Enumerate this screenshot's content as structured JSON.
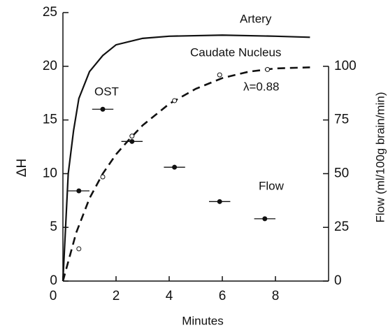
{
  "chart_data": {
    "type": "line",
    "xlabel": "Minutes",
    "ylabel": "ΔH",
    "y2label": "Flow (ml/100g brain/min)",
    "xlim": [
      0,
      10
    ],
    "xticks": [
      0,
      2,
      4,
      6,
      8
    ],
    "ylim": [
      0,
      25
    ],
    "yticks": [
      0,
      5,
      10,
      15,
      20,
      25
    ],
    "y2lim": [
      0,
      125
    ],
    "y2ticks": [
      0,
      25,
      50,
      75,
      100
    ],
    "annotations": [
      "λ=0.88"
    ],
    "series": [
      {
        "name": "Artery",
        "style": "solid",
        "color": "#111111",
        "x": [
          0,
          0.1,
          0.2,
          0.4,
          0.6,
          1,
          1.5,
          2,
          3,
          4,
          6,
          8,
          9.3
        ],
        "values": [
          0,
          5,
          10,
          14,
          17,
          19.5,
          21,
          22,
          22.6,
          22.8,
          22.9,
          22.8,
          22.7
        ]
      },
      {
        "name": "Caudate Nucleus",
        "style": "dashed",
        "color": "#111111",
        "x": [
          0,
          0.5,
          1,
          1.5,
          2,
          2.5,
          3,
          4,
          5,
          6,
          7,
          8,
          9.3
        ],
        "values": [
          0,
          4.5,
          7.7,
          10,
          11.8,
          13.2,
          14.5,
          16.5,
          17.9,
          18.9,
          19.5,
          19.8,
          19.9
        ]
      },
      {
        "name": "OST",
        "style": "open-points",
        "color": "#111111",
        "x": [
          0.6,
          1.5,
          2.6,
          4.2,
          5.9,
          7.7
        ],
        "values": [
          3,
          9.7,
          13.5,
          16.8,
          19.2,
          19.7
        ]
      },
      {
        "name": "Flow",
        "style": "filled-points",
        "axis": "y2",
        "color": "#111111",
        "x": [
          0.6,
          1.5,
          2.6,
          4.2,
          5.9,
          7.6
        ],
        "xerr": [
          0.4,
          0.4,
          0.4,
          0.4,
          0.4,
          0.4
        ],
        "values": [
          42,
          80,
          65,
          53,
          37,
          29
        ]
      }
    ]
  }
}
